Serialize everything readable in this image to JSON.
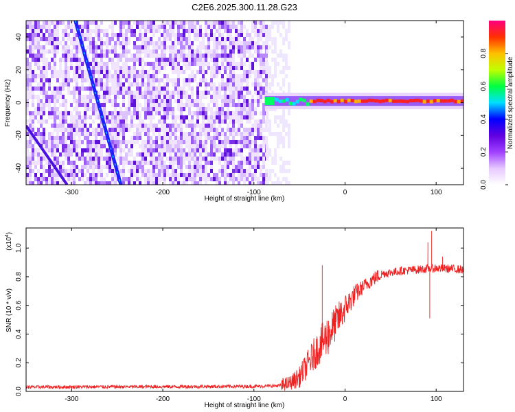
{
  "figure": {
    "title": "C2E6.2025.300.11.28.G23"
  },
  "chart_data": [
    {
      "type": "heatmap",
      "name": "spectrogram",
      "xlabel": "Height of straight line (km)",
      "ylabel": "Frequency (Hz)",
      "xlim": [
        -350,
        130
      ],
      "ylim": [
        -50,
        50
      ],
      "xticks": [
        -300,
        -200,
        -100,
        0,
        100
      ],
      "yticks": [
        -40,
        -20,
        0,
        20,
        40
      ],
      "noise_region_end_km": -87,
      "ridge_line": {
        "x": [
          -296,
          -246
        ],
        "y": [
          50,
          -50
        ]
      },
      "ridge_line_faint": {
        "x": [
          -350,
          -305
        ],
        "y": [
          -14,
          -50
        ]
      },
      "signal_band": {
        "x_start": -88,
        "x_end": 130,
        "center_freq_hz": 1
      },
      "colorbar": {
        "label": "Normalized spectral amplitude",
        "range": [
          0,
          1
        ],
        "ticks": [
          "0.0",
          "0.2",
          "0.4",
          "0.6",
          "0.8"
        ],
        "tick_values": [
          0.0,
          0.2,
          0.4,
          0.6,
          0.8
        ],
        "colors": [
          "#ffffff",
          "#e6c8ff",
          "#a040ff",
          "#6000e0",
          "#0000ff",
          "#00e0ff",
          "#00ff40",
          "#c0ff00",
          "#ffc000",
          "#ff3000",
          "#ff0080"
        ]
      }
    },
    {
      "type": "line",
      "name": "snr",
      "xlabel": "Height of straight line (km)",
      "ylabel": "SNR (10 * v/v)",
      "multiplier": "(x10",
      "multiplier_exp": "4",
      "multiplier_close": ")",
      "xlim": [
        -350,
        130
      ],
      "ylim": [
        0,
        1.14
      ],
      "xticks": [
        -300,
        -200,
        -100,
        0,
        100
      ],
      "yticks": [
        0.0,
        0.2,
        0.4,
        0.6,
        0.8,
        1.0
      ],
      "ytick_labels": [
        "0.0",
        "0.2",
        "0.4",
        "0.6",
        "0.8",
        "1.0"
      ],
      "line_color": "#ee2222",
      "trend": {
        "x": [
          -350,
          -100,
          -70,
          -60,
          -50,
          -40,
          -30,
          -20,
          -10,
          0,
          10,
          20,
          30,
          40,
          60,
          80,
          100,
          130
        ],
        "y": [
          0.03,
          0.035,
          0.04,
          0.06,
          0.1,
          0.2,
          0.3,
          0.38,
          0.48,
          0.58,
          0.67,
          0.73,
          0.78,
          0.82,
          0.84,
          0.85,
          0.86,
          0.85
        ]
      },
      "spikes": [
        {
          "x": -25,
          "y": 0.88
        },
        {
          "x": -20,
          "y": 0.7
        },
        {
          "x": 91,
          "y": 1.04
        },
        {
          "x": 93,
          "y": 0.51
        },
        {
          "x": 95,
          "y": 1.12
        },
        {
          "x": 100,
          "y": 0.58
        },
        {
          "x": 107,
          "y": 0.94
        }
      ]
    }
  ]
}
